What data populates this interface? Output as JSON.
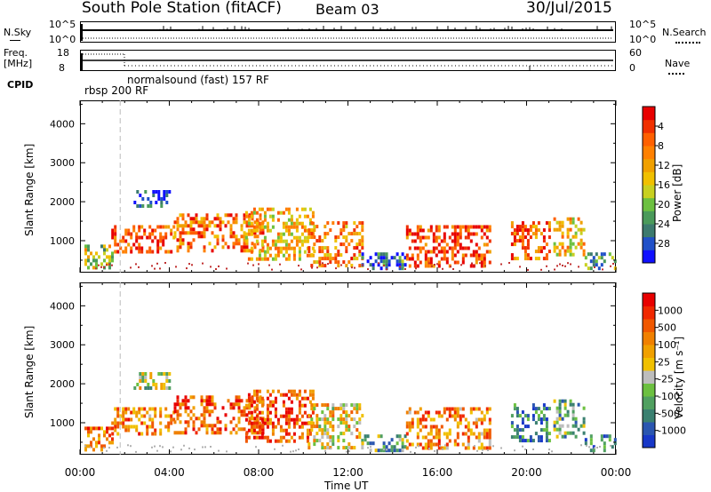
{
  "header": {
    "station": "South Pole Station (fitACF)",
    "beam": "Beam 03",
    "date": "30/Jul/2015"
  },
  "aux_panels": {
    "nsky_label": "N.Sky",
    "nsky_top": "10^5",
    "nsky_bottom": "10^0",
    "nsearch_label": "N.Search",
    "nsearch_top": "10^5",
    "nsearch_bottom": "10^0",
    "freq_label_1": "Freq.",
    "freq_label_2": "[MHz]",
    "freq_top": "18",
    "freq_bottom": "8",
    "nave_label": "Nave",
    "nave_top": "60",
    "nave_bottom": "0",
    "cpid_label": "CPID",
    "cpid_1": "rbsp 200 RF",
    "cpid_2": "normalsound (fast) 157 RF"
  },
  "chart_data": [
    {
      "type": "heatmap",
      "name": "power-panel",
      "ylabel": "Slant Range [km]",
      "yticks": [
        "1000",
        "2000",
        "3000",
        "4000"
      ],
      "ylim": [
        180,
        4600
      ],
      "xlim": [
        0,
        24
      ],
      "colorbar": {
        "label": "Power [dB]",
        "ticks": [
          "4",
          "8",
          "12",
          "16",
          "20",
          "24",
          "28"
        ],
        "colors": [
          "#1010ff",
          "#2050c8",
          "#3c7a6e",
          "#4a9a5a",
          "#6cc040",
          "#c8d020",
          "#f0c000",
          "#f0a000",
          "#ff8000",
          "#ff6000",
          "#f03000",
          "#e80000"
        ]
      },
      "echo_regions": [
        {
          "t0": 0.2,
          "t1": 1.4,
          "r0": 300,
          "r1": 900,
          "level": 0.45
        },
        {
          "t0": 1.4,
          "t1": 4.2,
          "r0": 700,
          "r1": 1400,
          "level": 0.8
        },
        {
          "t0": 2.4,
          "t1": 4.0,
          "r0": 1900,
          "r1": 2300,
          "level": 0.1
        },
        {
          "t0": 4.2,
          "t1": 8.2,
          "r0": 700,
          "r1": 1700,
          "level": 0.75
        },
        {
          "t0": 7.4,
          "t1": 10.4,
          "r0": 500,
          "r1": 1850,
          "level": 0.6
        },
        {
          "t0": 10.2,
          "t1": 12.6,
          "r0": 400,
          "r1": 1500,
          "level": 0.7
        },
        {
          "t0": 12.6,
          "t1": 14.6,
          "r0": 300,
          "r1": 700,
          "level": 0.2
        },
        {
          "t0": 14.6,
          "t1": 18.4,
          "r0": 350,
          "r1": 1400,
          "level": 0.85
        },
        {
          "t0": 19.3,
          "t1": 21.0,
          "r0": 500,
          "r1": 1500,
          "level": 0.8
        },
        {
          "t0": 21.2,
          "t1": 22.6,
          "r0": 600,
          "r1": 1600,
          "level": 0.6
        },
        {
          "t0": 22.6,
          "t1": 24.0,
          "r0": 250,
          "r1": 700,
          "level": 0.3
        }
      ]
    },
    {
      "type": "heatmap",
      "name": "velocity-panel",
      "ylabel": "Slant Range [km]",
      "yticks": [
        "1000",
        "2000",
        "3000",
        "4000"
      ],
      "ylim": [
        180,
        4600
      ],
      "xlim": [
        0,
        24
      ],
      "colorbar": {
        "label": "Velocity [m s⁻¹]",
        "ticks": [
          "1000",
          "500",
          "100",
          "25",
          "-25",
          "-100",
          "-500",
          "-1000"
        ],
        "colors": [
          "#1838c8",
          "#2a56b0",
          "#3a8070",
          "#50a060",
          "#6cc040",
          "#bdbdbd",
          "#f0c000",
          "#f0a000",
          "#f08000",
          "#f05800",
          "#f02800",
          "#e80000"
        ]
      },
      "echo_regions": [
        {
          "t0": 0.2,
          "t1": 1.4,
          "r0": 300,
          "r1": 900,
          "level": 0.75
        },
        {
          "t0": 1.4,
          "t1": 4.2,
          "r0": 700,
          "r1": 1400,
          "level": 0.72
        },
        {
          "t0": 2.4,
          "t1": 4.0,
          "r0": 1900,
          "r1": 2300,
          "level": 0.45
        },
        {
          "t0": 4.2,
          "t1": 8.2,
          "r0": 700,
          "r1": 1700,
          "level": 0.8
        },
        {
          "t0": 7.4,
          "t1": 10.4,
          "r0": 500,
          "r1": 1850,
          "level": 0.82
        },
        {
          "t0": 10.2,
          "t1": 12.6,
          "r0": 400,
          "r1": 1500,
          "level": 0.55
        },
        {
          "t0": 12.6,
          "t1": 14.6,
          "r0": 300,
          "r1": 700,
          "level": 0.3
        },
        {
          "t0": 14.6,
          "t1": 18.4,
          "r0": 350,
          "r1": 1400,
          "level": 0.7
        },
        {
          "t0": 19.3,
          "t1": 21.0,
          "r0": 500,
          "r1": 1500,
          "level": 0.2
        },
        {
          "t0": 21.2,
          "t1": 22.6,
          "r0": 600,
          "r1": 1600,
          "level": 0.35
        },
        {
          "t0": 22.6,
          "t1": 24.0,
          "r0": 250,
          "r1": 700,
          "level": 0.25
        }
      ]
    }
  ],
  "x_axis": {
    "label": "Time UT",
    "ticks": [
      "00:00",
      "04:00",
      "08:00",
      "12:00",
      "16:00",
      "20:00",
      "00:00"
    ]
  }
}
